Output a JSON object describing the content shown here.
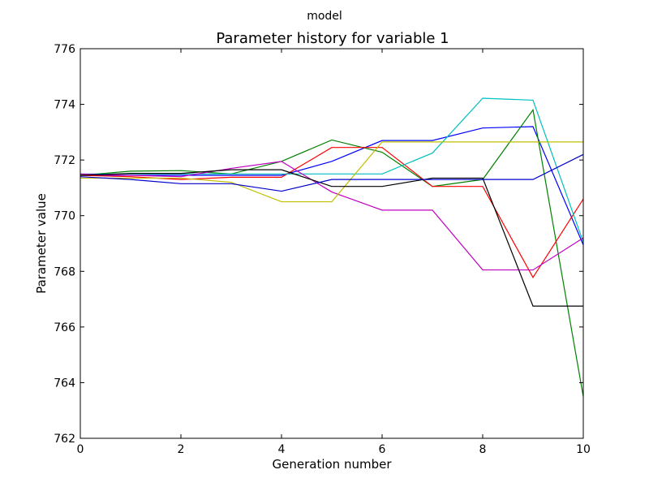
{
  "figure": {
    "suptitle": "model"
  },
  "chart_data": {
    "type": "line",
    "title": "Parameter history for variable 1",
    "xlabel": "Generation number",
    "ylabel": "Parameter value",
    "xlim": [
      0,
      10
    ],
    "ylim": [
      762,
      776
    ],
    "xticks": [
      0,
      2,
      4,
      6,
      8,
      10
    ],
    "yticks": [
      762,
      764,
      766,
      768,
      770,
      772,
      774,
      776
    ],
    "x": [
      0,
      1,
      2,
      3,
      4,
      5,
      6,
      7,
      8,
      9,
      10
    ],
    "grid": false,
    "legend": "none",
    "series": [
      {
        "color": "#0000ff",
        "values": [
          771.45,
          771.45,
          771.45,
          771.45,
          771.45,
          771.95,
          772.7,
          772.7,
          773.15,
          773.2,
          768.95
        ]
      },
      {
        "color": "#008000",
        "values": [
          771.45,
          771.6,
          771.62,
          771.5,
          771.95,
          772.72,
          772.28,
          771.05,
          771.3,
          773.8,
          763.5
        ]
      },
      {
        "color": "#ff0000",
        "values": [
          771.45,
          771.4,
          771.3,
          771.38,
          771.38,
          772.45,
          772.45,
          771.05,
          771.05,
          767.78,
          770.6
        ]
      },
      {
        "color": "#00bfbf",
        "values": [
          771.5,
          771.5,
          771.5,
          771.5,
          771.5,
          771.5,
          771.5,
          772.25,
          774.22,
          774.15,
          769.05
        ]
      },
      {
        "color": "#bf00bf",
        "values": [
          771.5,
          771.45,
          771.4,
          771.7,
          771.95,
          770.85,
          770.2,
          770.2,
          768.05,
          768.05,
          769.2
        ]
      },
      {
        "color": "#bfbf00",
        "values": [
          771.35,
          771.35,
          771.35,
          771.2,
          770.5,
          770.5,
          772.65,
          772.65,
          772.65,
          772.65,
          772.65
        ]
      },
      {
        "color": "#000000",
        "values": [
          771.45,
          771.52,
          771.52,
          771.65,
          771.65,
          771.05,
          771.05,
          771.35,
          771.35,
          766.75,
          766.75
        ]
      },
      {
        "color": "#0000cc",
        "values": [
          771.4,
          771.3,
          771.15,
          771.15,
          770.88,
          771.3,
          771.3,
          771.3,
          771.3,
          771.3,
          772.2
        ]
      }
    ]
  }
}
